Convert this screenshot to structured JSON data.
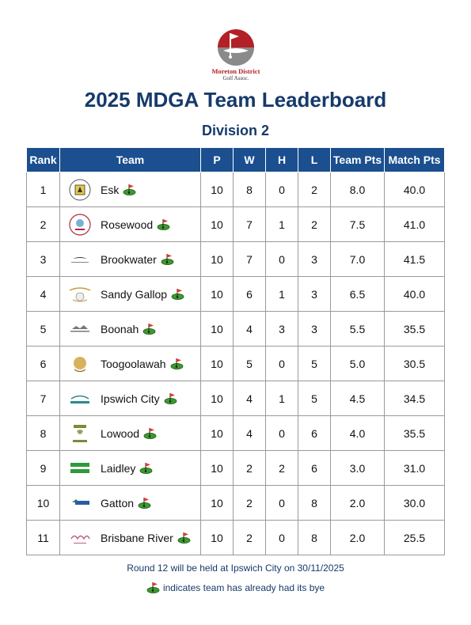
{
  "logo": {
    "line1": "Moreton District",
    "line2": "Golf Assoc."
  },
  "title": "2025 MDGA Team Leaderboard",
  "subtitle": "Division 2",
  "table": {
    "headers": [
      "Rank",
      "Team",
      "P",
      "W",
      "H",
      "L",
      "Team Pts",
      "Match Pts"
    ],
    "rows": [
      {
        "rank": "1",
        "team": "Esk",
        "p": "10",
        "w": "8",
        "h": "0",
        "l": "2",
        "team_pts": "8.0",
        "match_pts": "40.0",
        "bye": true
      },
      {
        "rank": "2",
        "team": "Rosewood",
        "p": "10",
        "w": "7",
        "h": "1",
        "l": "2",
        "team_pts": "7.5",
        "match_pts": "41.0",
        "bye": true
      },
      {
        "rank": "3",
        "team": "Brookwater",
        "p": "10",
        "w": "7",
        "h": "0",
        "l": "3",
        "team_pts": "7.0",
        "match_pts": "41.5",
        "bye": true
      },
      {
        "rank": "4",
        "team": "Sandy Gallop",
        "p": "10",
        "w": "6",
        "h": "1",
        "l": "3",
        "team_pts": "6.5",
        "match_pts": "40.0",
        "bye": true
      },
      {
        "rank": "5",
        "team": "Boonah",
        "p": "10",
        "w": "4",
        "h": "3",
        "l": "3",
        "team_pts": "5.5",
        "match_pts": "35.5",
        "bye": true
      },
      {
        "rank": "6",
        "team": "Toogoolawah",
        "p": "10",
        "w": "5",
        "h": "0",
        "l": "5",
        "team_pts": "5.0",
        "match_pts": "30.5",
        "bye": true
      },
      {
        "rank": "7",
        "team": "Ipswich City",
        "p": "10",
        "w": "4",
        "h": "1",
        "l": "5",
        "team_pts": "4.5",
        "match_pts": "34.5",
        "bye": true
      },
      {
        "rank": "8",
        "team": "Lowood",
        "p": "10",
        "w": "4",
        "h": "0",
        "l": "6",
        "team_pts": "4.0",
        "match_pts": "35.5",
        "bye": true
      },
      {
        "rank": "9",
        "team": "Laidley",
        "p": "10",
        "w": "2",
        "h": "2",
        "l": "6",
        "team_pts": "3.0",
        "match_pts": "31.0",
        "bye": true
      },
      {
        "rank": "10",
        "team": "Gatton",
        "p": "10",
        "w": "2",
        "h": "0",
        "l": "8",
        "team_pts": "2.0",
        "match_pts": "30.0",
        "bye": true
      },
      {
        "rank": "11",
        "team": "Brisbane River",
        "p": "10",
        "w": "2",
        "h": "0",
        "l": "8",
        "team_pts": "2.0",
        "match_pts": "25.5",
        "bye": true
      }
    ]
  },
  "footer": {
    "next_round": "Round 12 will be held at Ipswich City on 30/11/2025",
    "bye_legend": "indicates team has already had its bye"
  },
  "colors": {
    "heading": "#163a6b",
    "header_bg": "#1b4f8f",
    "logo_red": "#b32025"
  },
  "icons": {
    "bye": "golf-green-flag-icon"
  }
}
